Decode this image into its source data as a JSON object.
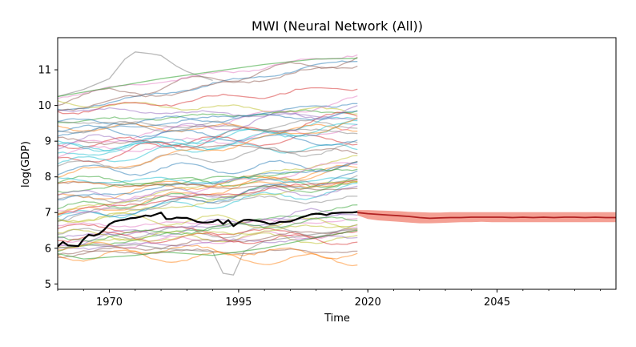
{
  "chart_data": {
    "type": "line",
    "title": "MWI (Neural Network (All))",
    "xlabel": "Time",
    "ylabel": "log(GDP)",
    "xlim": [
      1960,
      2068
    ],
    "ylim": [
      4.85,
      11.9
    ],
    "x_ticks": [
      1970,
      1995,
      2020,
      2045
    ],
    "y_ticks": [
      5,
      6,
      7,
      8,
      9,
      10,
      11
    ],
    "grid": false,
    "legend": "none",
    "colors": {
      "history": "#000000",
      "forecast": "#b22222",
      "band": "#f08070",
      "palette": [
        "#1f77b4",
        "#ff7f0e",
        "#2ca02c",
        "#d62728",
        "#9467bd",
        "#8c564b",
        "#e377c2",
        "#7f7f7f",
        "#bcbd22",
        "#17becf"
      ]
    },
    "series": [
      {
        "role": "history",
        "x": [
          1960,
          1961,
          1962,
          1963,
          1964,
          1965,
          1966,
          1967,
          1968,
          1969,
          1970,
          1971,
          1972,
          1973,
          1974,
          1975,
          1976,
          1977,
          1978,
          1979,
          1980,
          1981,
          1982,
          1983,
          1984,
          1985,
          1986,
          1987,
          1988,
          1989,
          1990,
          1991,
          1992,
          1993,
          1994,
          1995,
          1996,
          1997,
          1998,
          1999,
          2000,
          2001,
          2002,
          2003,
          2004,
          2005,
          2006,
          2007,
          2008,
          2009,
          2010,
          2011,
          2012,
          2013,
          2014,
          2015,
          2016,
          2017,
          2018
        ],
        "y": [
          6.05,
          6.18,
          6.08,
          6.07,
          6.06,
          6.25,
          6.38,
          6.35,
          6.4,
          6.52,
          6.67,
          6.75,
          6.78,
          6.8,
          6.84,
          6.85,
          6.88,
          6.92,
          6.9,
          6.95,
          7.0,
          6.82,
          6.82,
          6.86,
          6.85,
          6.85,
          6.8,
          6.74,
          6.72,
          6.72,
          6.74,
          6.8,
          6.68,
          6.79,
          6.62,
          6.72,
          6.79,
          6.8,
          6.78,
          6.76,
          6.73,
          6.68,
          6.69,
          6.74,
          6.74,
          6.75,
          6.8,
          6.86,
          6.9,
          6.95,
          6.97,
          6.96,
          6.93,
          6.98,
          6.99,
          7.0,
          7.0,
          7.0,
          7.02
        ]
      },
      {
        "role": "forecast",
        "x": [
          2018,
          2020,
          2022,
          2024,
          2026,
          2028,
          2030,
          2032,
          2034,
          2036,
          2038,
          2040,
          2042,
          2044,
          2046,
          2048,
          2050,
          2052,
          2054,
          2056,
          2058,
          2060,
          2062,
          2064,
          2066,
          2068
        ],
        "y": [
          7.0,
          6.97,
          6.95,
          6.93,
          6.91,
          6.89,
          6.86,
          6.84,
          6.85,
          6.86,
          6.86,
          6.87,
          6.87,
          6.87,
          6.87,
          6.86,
          6.87,
          6.86,
          6.87,
          6.86,
          6.87,
          6.87,
          6.86,
          6.87,
          6.86,
          6.86
        ],
        "band_lower": [
          6.92,
          6.82,
          6.78,
          6.76,
          6.74,
          6.72,
          6.7,
          6.7,
          6.71,
          6.72,
          6.73,
          6.73,
          6.74,
          6.73,
          6.73,
          6.73,
          6.73,
          6.73,
          6.73,
          6.73,
          6.73,
          6.73,
          6.73,
          6.73,
          6.73,
          6.73
        ],
        "band_upper": [
          7.07,
          7.07,
          7.06,
          7.05,
          7.04,
          7.02,
          7.01,
          7.0,
          7.0,
          7.01,
          7.01,
          7.01,
          7.01,
          7.01,
          7.01,
          7.01,
          7.01,
          7.01,
          7.01,
          7.01,
          7.01,
          7.01,
          7.01,
          7.01,
          7.01,
          7.01
        ]
      },
      {
        "role": "reference_panel",
        "count": 62,
        "x_range": [
          1960,
          2018
        ],
        "start_range": [
          5.8,
          10.35
        ],
        "growth_range": [
          -0.4,
          1.6
        ],
        "extremes": [
          {
            "x": [
              1960,
              1965,
              1970,
              1973,
              1975,
              1978,
              1980,
              1983,
              1985,
              1988,
              1990
            ],
            "y": [
              10.25,
              10.45,
              10.75,
              11.3,
              11.5,
              11.45,
              11.4,
              11.1,
              10.95,
              10.8,
              10.7
            ]
          },
          {
            "x": [
              1960,
              1970,
              1980,
              1990,
              2000,
              2010,
              2018
            ],
            "y": [
              10.25,
              10.5,
              10.75,
              10.95,
              11.15,
              11.3,
              11.32
            ]
          },
          {
            "x": [
              1960,
              1965,
              1970,
              1975,
              1980,
              1985,
              1990,
              1992,
              1994,
              1996,
              2000,
              2005,
              2010,
              2018
            ],
            "y": [
              6.0,
              6.1,
              6.05,
              6.1,
              6.0,
              5.95,
              5.9,
              5.3,
              5.25,
              5.9,
              6.2,
              6.3,
              6.4,
              6.55
            ]
          },
          {
            "x": [
              1960,
              1965,
              1970,
              1975,
              1980,
              1985,
              1990,
              1995,
              2000,
              2005,
              2010,
              2018
            ],
            "y": [
              5.85,
              5.7,
              5.75,
              5.8,
              5.9,
              5.85,
              5.8,
              5.9,
              6.0,
              6.15,
              6.3,
              6.5
            ]
          }
        ]
      }
    ]
  }
}
